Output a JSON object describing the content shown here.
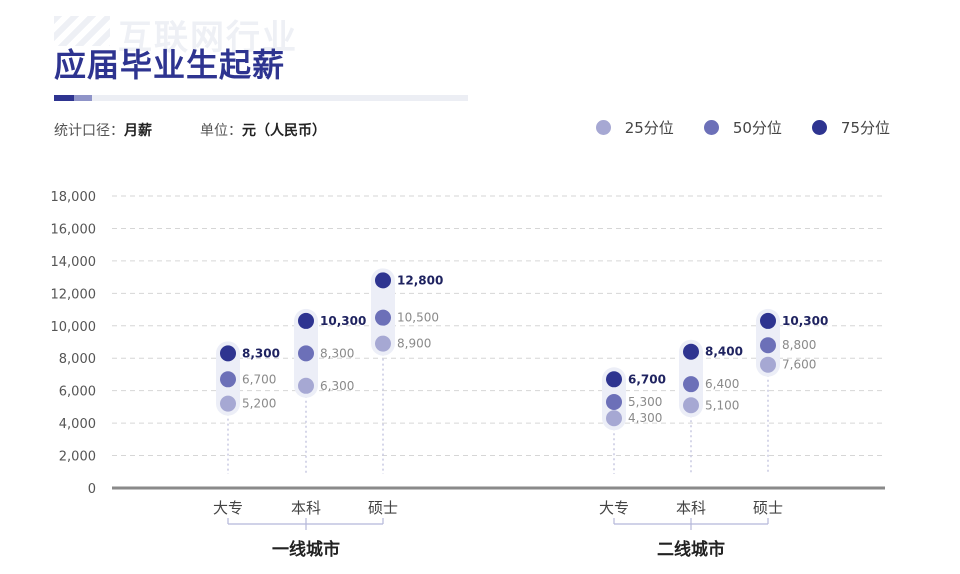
{
  "header": {
    "watermark": "互联网行业",
    "title": "应届毕业生起薪"
  },
  "meta": {
    "stat_label": "统计口径：",
    "stat_value": "月薪",
    "unit_label": "单位：",
    "unit_value": "元（人民币）"
  },
  "legend": [
    {
      "label": "25分位",
      "color": "#a6a8d3"
    },
    {
      "label": "50分位",
      "color": "#6c70b8"
    },
    {
      "label": "75分位",
      "color": "#2e3490"
    }
  ],
  "chart_data": {
    "type": "scatter",
    "ylim": [
      0,
      18000
    ],
    "yticks": [
      "0",
      "2,000",
      "4,000",
      "6,000",
      "8,000",
      "10,000",
      "12,000",
      "14,000",
      "16,000",
      "18,000"
    ],
    "grid": true,
    "groups": [
      {
        "name": "一线城市",
        "categories": [
          "大专",
          "本科",
          "硕士"
        ],
        "p25": [
          5200,
          6300,
          8900
        ],
        "p50": [
          6700,
          8300,
          10500
        ],
        "p75": [
          8300,
          10300,
          12800
        ],
        "p25_labels": [
          "5,200",
          "6,300",
          "8,900"
        ],
        "p50_labels": [
          "6,700",
          "8,300",
          "10,500"
        ],
        "p75_labels": [
          "8,300",
          "10,300",
          "12,800"
        ]
      },
      {
        "name": "二线城市",
        "categories": [
          "大专",
          "本科",
          "硕士"
        ],
        "p25": [
          4300,
          5100,
          7600
        ],
        "p50": [
          5300,
          6400,
          8800
        ],
        "p75": [
          6700,
          8400,
          10300
        ],
        "p25_labels": [
          "4,300",
          "5,100",
          "7,600"
        ],
        "p50_labels": [
          "5,300",
          "6,400",
          "8,800"
        ],
        "p75_labels": [
          "6,700",
          "8,400",
          "10,300"
        ]
      }
    ]
  }
}
